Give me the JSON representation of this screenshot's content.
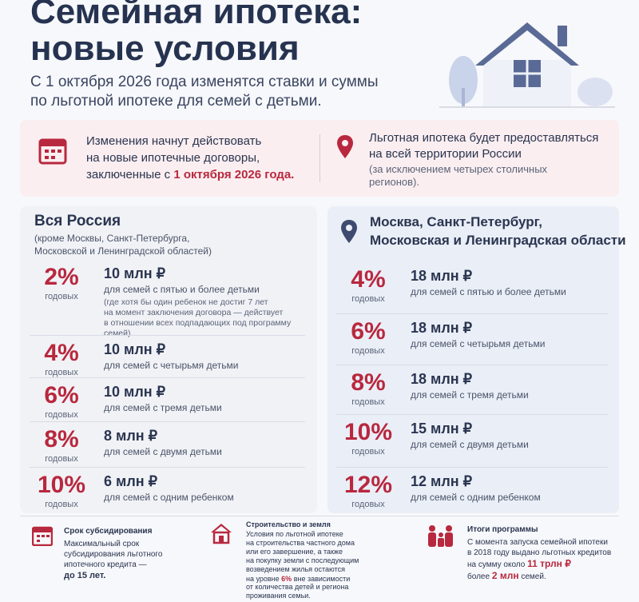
{
  "header": {
    "title": [
      "Семейная ипотека:",
      "новые условия"
    ],
    "subtitle": [
      "С 1 октября 2026 года изменятся ставки и суммы",
      "по льготной ипотеке для семей с детьми."
    ]
  },
  "banner": {
    "left": {
      "lines": [
        "Изменения начнут действовать",
        "на новые ипотечные договоры,"
      ],
      "last_line": "заключенные с",
      "highlight": "1 октября 2026 года."
    },
    "right": {
      "lines": [
        "Льготная ипотека будет предоставляться",
        "на всей территории России"
      ],
      "note": [
        "(за исключением четырех столичных",
        "регионов)."
      ]
    }
  },
  "russia": {
    "title": "Вся Россия",
    "note": [
      "(кроме Москвы, Санкт-Петербурга,",
      "Московской и Ленинградской областей)"
    ],
    "rows": [
      {
        "rate": "2%",
        "period": "годовых",
        "amount": "10 млн ₽",
        "description": "для семей с пятью и более детьми",
        "note": [
          "(где хотя бы один ребенок не достиг 7 лет",
          "на момент заключения договора — действует",
          "в отношении всех подпадающих под программу",
          "семей)."
        ]
      },
      {
        "rate": "4%",
        "period": "годовых",
        "amount": "10 млн ₽",
        "description": "для семей с четырьмя детьми"
      },
      {
        "rate": "6%",
        "period": "годовых",
        "amount": "10 млн ₽",
        "description": "для семей с тремя детьми"
      },
      {
        "rate": "8%",
        "period": "годовых",
        "amount": "8 млн ₽",
        "description": "для семей с двумя детьми"
      },
      {
        "rate": "10%",
        "period": "годовых",
        "amount": "6 млн ₽",
        "description": "для семей с одним ребенком"
      }
    ]
  },
  "capitals": {
    "title": [
      "Москва, Санкт-Петербург,",
      "Московская и Ленинградская области"
    ],
    "rows": [
      {
        "rate": "4%",
        "period": "годовых",
        "amount": "18 млн ₽",
        "description": "для семей с пятью и более детьми"
      },
      {
        "rate": "6%",
        "period": "годовых",
        "amount": "18 млн ₽",
        "description": "для семей с четырьмя детьми"
      },
      {
        "rate": "8%",
        "period": "годовых",
        "amount": "18 млн ₽",
        "description": "для семей с тремя детьми"
      },
      {
        "rate": "10%",
        "period": "годовых",
        "amount": "15 млн ₽",
        "description": "для семей с двумя детьми"
      },
      {
        "rate": "12%",
        "period": "годовых",
        "amount": "12 млн ₽",
        "description": "для семей с одним ребенком"
      }
    ]
  },
  "footer": {
    "term": {
      "title": "Срок субсидирования",
      "lines": [
        "Максимальный срок",
        "субсидирования льготного",
        "ипотечного кредита —"
      ],
      "highlight": "до 15 лет."
    },
    "construction": {
      "title": "Строительство и земля",
      "lines": [
        "Условия по льготной ипотеке",
        "на строительства частного дома",
        "или его завершение, а также",
        "на покупку земли с последующим",
        "возведением жилья остаются"
      ],
      "rate_prefix": "на уровне",
      "rate": "6%",
      "rate_suffix": "вне зависимости",
      "tail": [
        "от количества детей и региона",
        "проживания семьи."
      ]
    },
    "results": {
      "title": "Итоги программы",
      "lines": [
        "С момента запуска семейной ипотеки",
        "в 2018 году выдано льготных кредитов"
      ],
      "sum_prefix": "на сумму около",
      "sum": "11 трлн ₽",
      "families_prefix": "более",
      "families": "2 млн",
      "families_suffix": "семей."
    }
  }
}
